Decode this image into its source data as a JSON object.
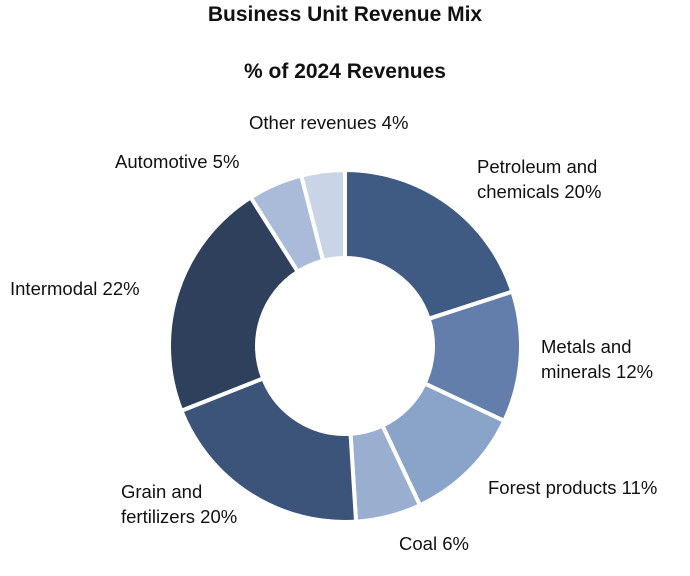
{
  "header": {
    "title": "Business Unit Revenue Mix",
    "subtitle": "% of 2024 Revenues"
  },
  "chart_data": {
    "type": "pie",
    "donut": true,
    "title": "Business Unit Revenue Mix",
    "subtitle": "% of 2024 Revenues",
    "categories": [
      "Petroleum and chemicals",
      "Metals and minerals",
      "Forest products",
      "Coal",
      "Grain and fertilizers",
      "Intermodal",
      "Automotive",
      "Other revenues"
    ],
    "values": [
      20,
      12,
      11,
      6,
      20,
      22,
      5,
      4
    ],
    "unit": "%",
    "colors": [
      "#3f5a83",
      "#637eab",
      "#8aa3c8",
      "#9aafd0",
      "#3c5479",
      "#2f405c",
      "#a9bbd8",
      "#c9d5e6"
    ],
    "start_angle": "12 o'clock, clockwise",
    "legend": "none (direct labels)"
  },
  "labels": {
    "petroleum_1": "Petroleum and",
    "petroleum_2": "chemicals 20%",
    "metals_1": "Metals and",
    "metals_2": "minerals 12%",
    "forest": "Forest products 11%",
    "coal": "Coal 6%",
    "grain_1": "Grain and",
    "grain_2": "fertilizers 20%",
    "intermodal": "Intermodal 22%",
    "automotive": "Automotive 5%",
    "other": "Other revenues 4%"
  }
}
